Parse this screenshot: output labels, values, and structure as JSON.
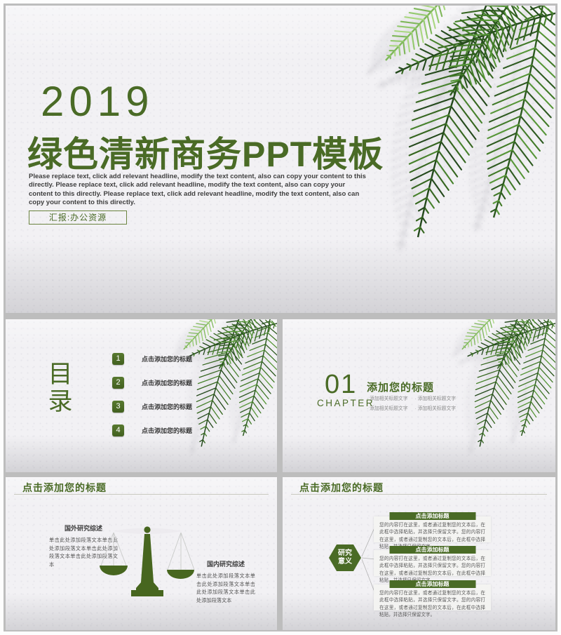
{
  "colors": {
    "accent": "#4a6b26",
    "leaf_dark": "#2c5520",
    "leaf_light": "#8cc066",
    "slide_background": "#f2f1f4",
    "mat_gray": "#bdbdbd"
  },
  "cover": {
    "year": "2019",
    "title": "绿色清新商务PPT模板",
    "description": "Please replace text, click add relevant headline, modify the text content, also can copy your content to this directly. Please replace text, click add relevant headline, modify the text content, also can copy your content to this directly. Please replace text, click add relevant headline, modify the text content, also can copy your content to this directly.",
    "presenter": "汇报:办公资源"
  },
  "toc": {
    "heading_char_1": "目",
    "heading_char_2": "录",
    "items": [
      {
        "num": "1",
        "label": "点击添加您的标题"
      },
      {
        "num": "2",
        "label": "点击添加您的标题"
      },
      {
        "num": "3",
        "label": "点击添加您的标题"
      },
      {
        "num": "4",
        "label": "点击添加您的标题"
      }
    ]
  },
  "chapter": {
    "number": "01",
    "label": "CHAPTER",
    "title": "添加您的标题",
    "bullets": [
      "添加相关标题文字",
      "添加相关标题文字",
      "添加相关标题文字",
      "添加相关标题文字"
    ]
  },
  "balance": {
    "title": "点击添加您的标题",
    "left": {
      "heading": "国外研究综述",
      "body": "单击此处添加段落文本单击此处添加段落文本单击此处添加段落文本单击此处添加段落文本"
    },
    "right": {
      "heading": "国内研究综述",
      "body": "单击此处添加段落文本单击此处添加段落文本单击此处添加段落文本单击此处添加段落文本"
    }
  },
  "research": {
    "title": "点击添加您的标题",
    "hexagon_line1": "研究",
    "hexagon_line2": "意义",
    "boxes": [
      {
        "heading": "点击添加标题",
        "body": "您的内容打在这里，或者通过复制您的文本后，在此框中选择粘贴，并选择只保留文字。您的内容打在这里，或者通过复制您的文本后，在此框中选择粘贴，并选择只保留文字。"
      },
      {
        "heading": "点击添加标题",
        "body": "您的内容打在这里，或者通过复制您的文本后，在此框中选择粘贴，并选择只保留文字。您的内容打在这里，或者通过复制您的文本后，在此框中选择粘贴，并选择只保留文字。"
      },
      {
        "heading": "点击添加标题",
        "body": "您的内容打在这里，或者通过复制您的文本后，在此框中选择粘贴，并选择只保留文字。您的内容打在这里，或者通过复制您的文本后，在此框中选择粘贴，并选择只保留文字。"
      }
    ]
  }
}
